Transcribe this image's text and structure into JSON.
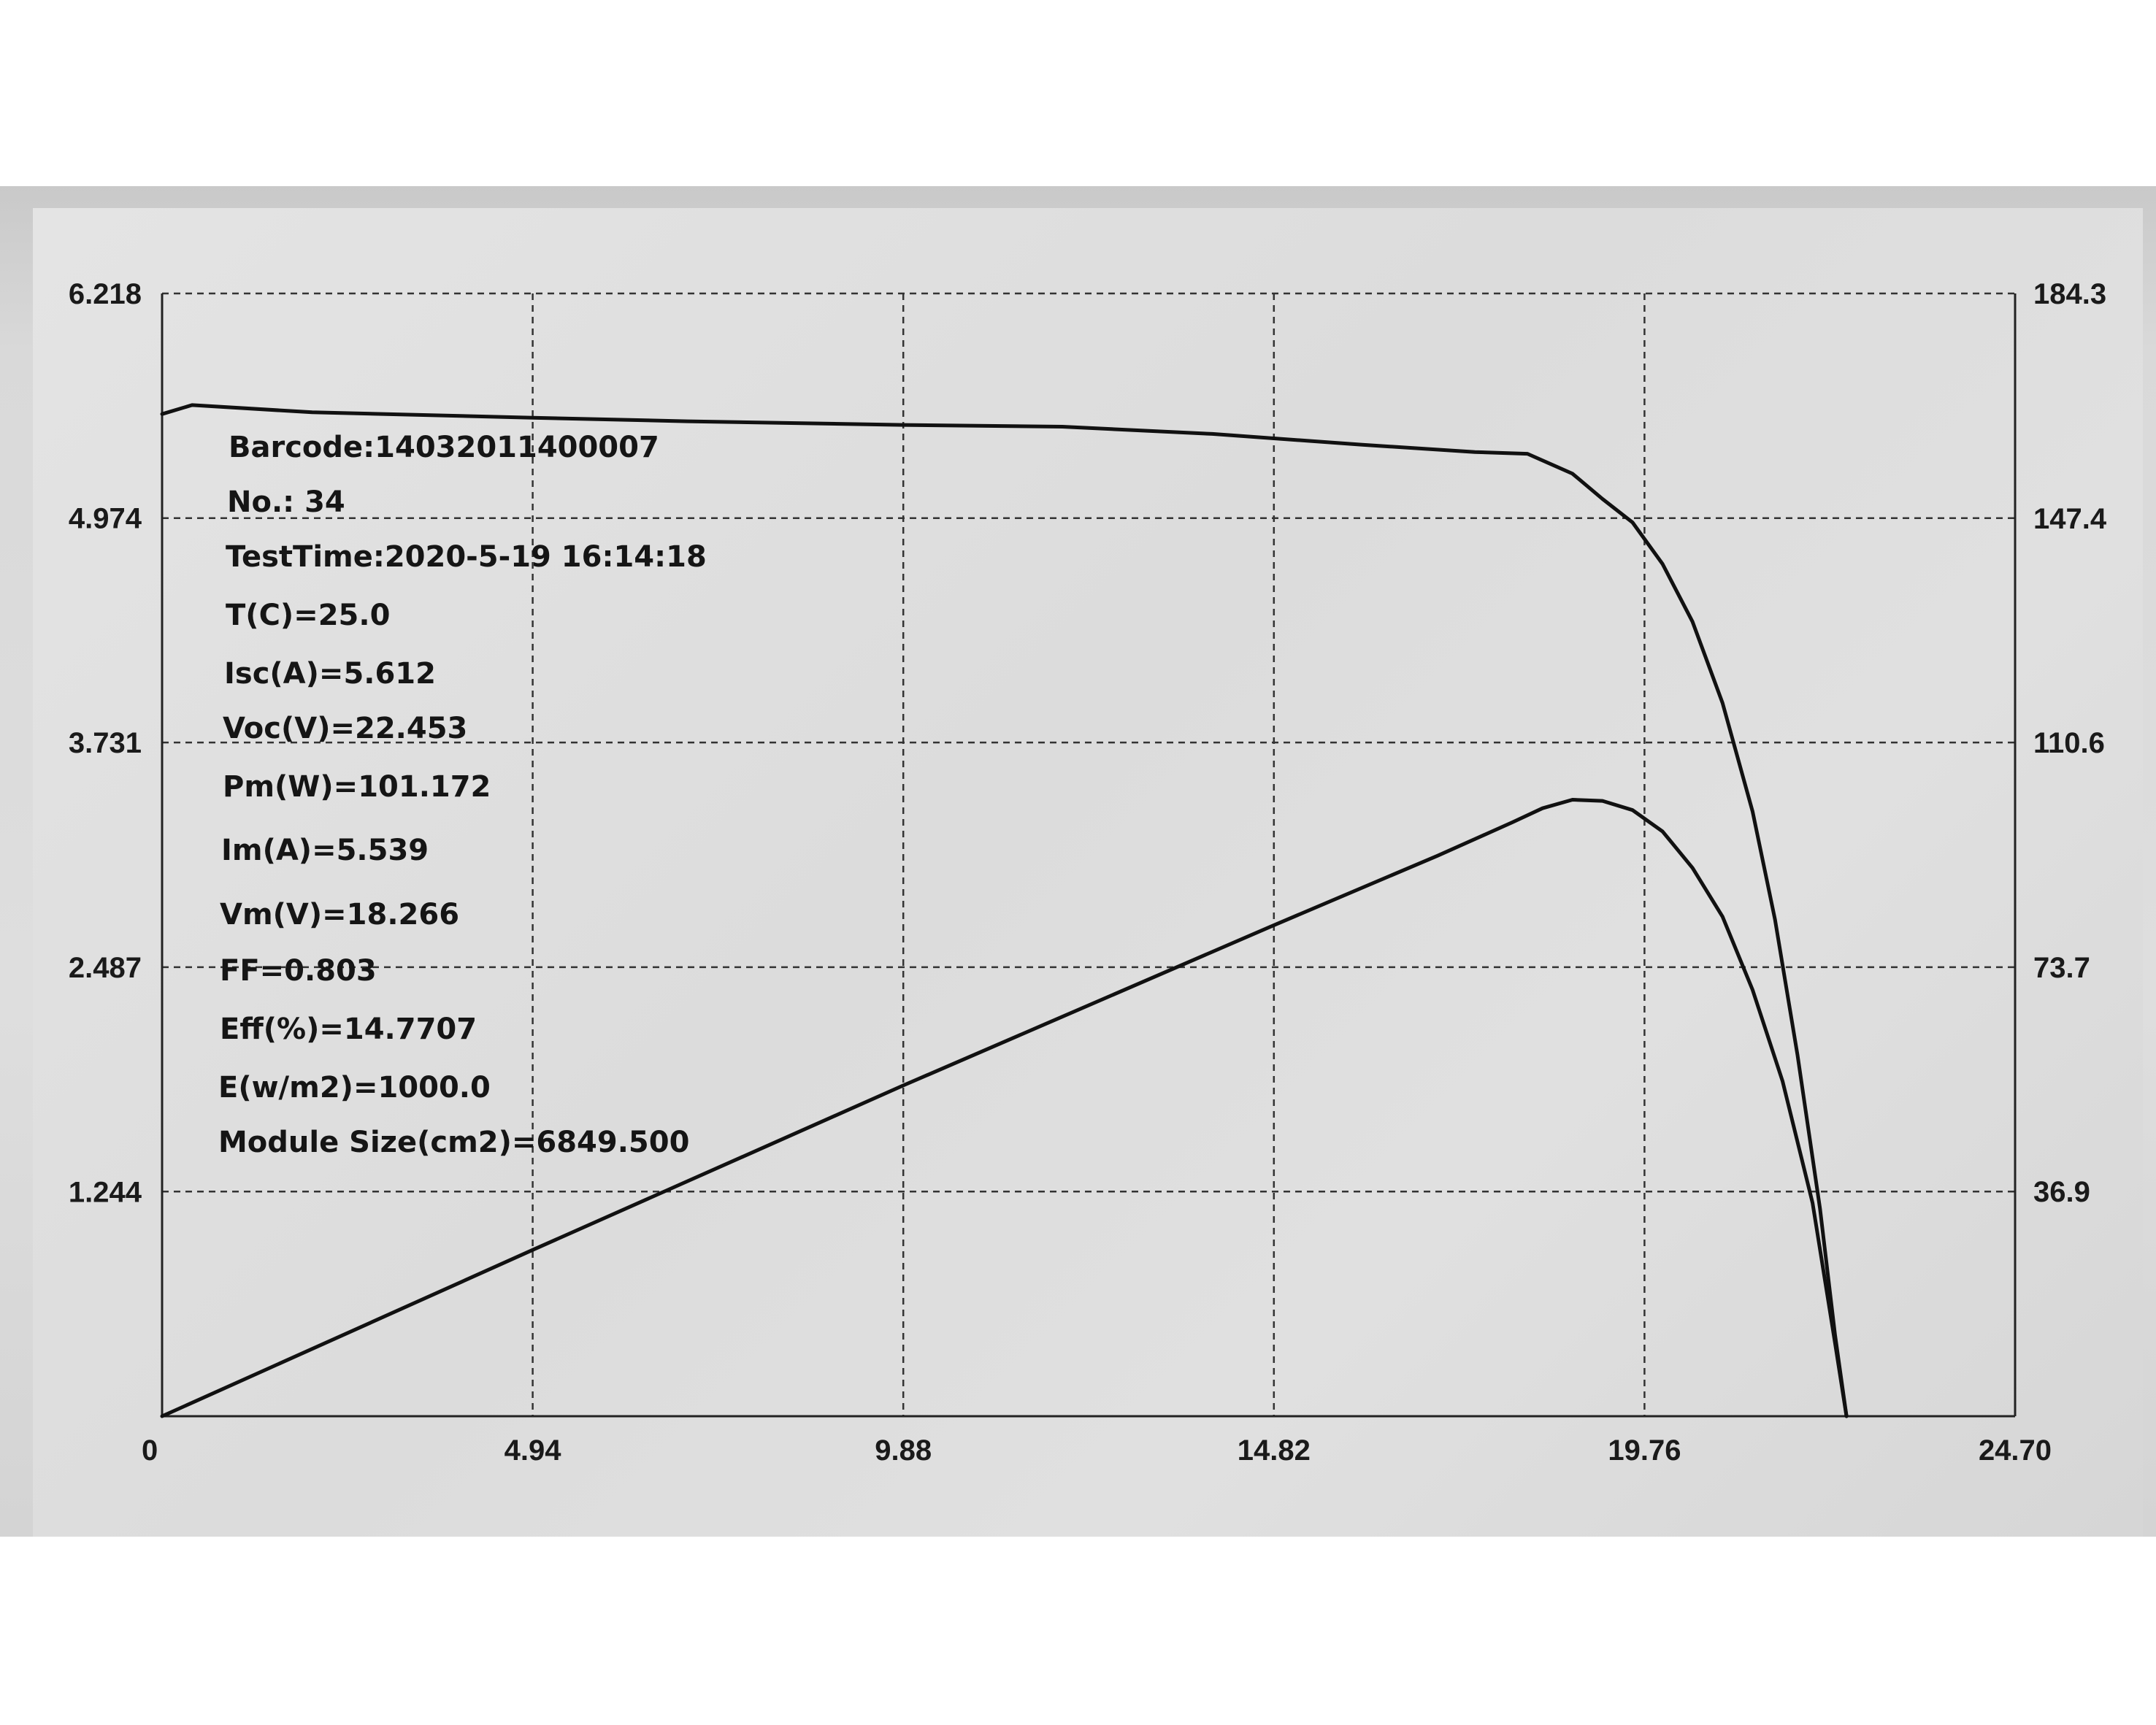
{
  "chart_data": {
    "type": "line",
    "title": "",
    "xlabel": "",
    "ylabel": "",
    "xlim": [
      0,
      24.7
    ],
    "ylim": [
      0,
      6.218
    ],
    "y2lim": [
      0,
      184.3
    ],
    "grid": true,
    "x_ticks": [
      "0",
      "4.94",
      "9.88",
      "14.82",
      "19.76",
      "24.70"
    ],
    "y_ticks_left": [
      "6.218",
      "4.974",
      "3.731",
      "2.487",
      "1.244"
    ],
    "y_ticks_right": [
      "184.3",
      "147.4",
      "110.6",
      "73.7",
      "36.9"
    ],
    "series": [
      {
        "axis": "left",
        "x": [
          0,
          0.4,
          2,
          4.94,
          7,
          9.88,
          12,
          14,
          16,
          17.5,
          18.2,
          18.8,
          19.2,
          19.6,
          20,
          20.4,
          20.8,
          21.2,
          21.5,
          21.8,
          22.1,
          22.3,
          22.453
        ],
        "values": [
          5.55,
          5.6,
          5.56,
          5.53,
          5.51,
          5.49,
          5.48,
          5.44,
          5.38,
          5.34,
          5.33,
          5.22,
          5.08,
          4.95,
          4.72,
          4.4,
          3.95,
          3.35,
          2.75,
          2.0,
          1.15,
          0.45,
          0
        ]
      },
      {
        "axis": "right",
        "x": [
          0,
          4.94,
          9.88,
          14.82,
          17,
          18,
          18.4,
          18.8,
          19.2,
          19.6,
          20,
          20.4,
          20.8,
          21.2,
          21.6,
          22,
          22.3,
          22.453
        ],
        "values": [
          0,
          27.3,
          54.3,
          80.6,
          92.0,
          97.5,
          99.8,
          101.2,
          101.0,
          99.5,
          96.0,
          90.0,
          82.0,
          70.0,
          55.0,
          35.0,
          12.0,
          0
        ]
      }
    ]
  },
  "info": {
    "barcode": "Barcode:14032011400007",
    "no": "No.: 34",
    "test_time": "TestTime:2020-5-19 16:14:18",
    "temp": "T(C)=25.0",
    "isc": "Isc(A)=5.612",
    "voc": "Voc(V)=22.453",
    "pm": "Pm(W)=101.172",
    "im": "Im(A)=5.539",
    "vm": "Vm(V)=18.266",
    "ff": "FF=0.803",
    "eff": "Eff(%)=14.7707",
    "irradiance": "E(w/m2)=1000.0",
    "module_size": "Module Size(cm2)=6849.500"
  }
}
